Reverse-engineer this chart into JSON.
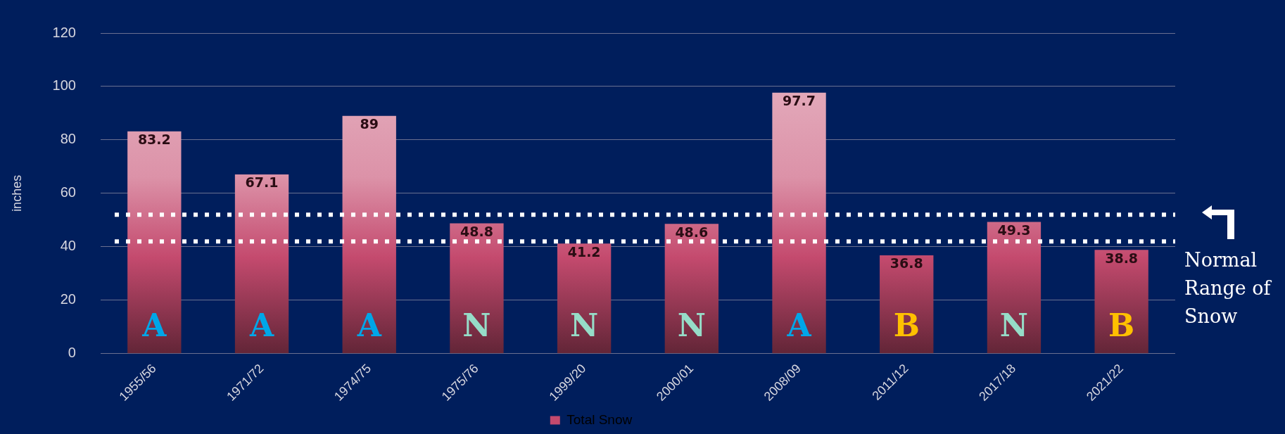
{
  "chart_data": {
    "type": "bar",
    "ylabel": "inches",
    "categories": [
      "1955/56",
      "1971/72",
      "1974/75",
      "1975/76",
      "1999/20",
      "2000/01",
      "2008/09",
      "2011/12",
      "2017/18",
      "2021/22"
    ],
    "series": [
      {
        "name": "Total Snow",
        "color": "#c44a6e",
        "values": [
          83.2,
          67.1,
          89,
          48.8,
          41.2,
          48.6,
          97.7,
          36.8,
          49.3,
          38.8
        ]
      }
    ],
    "data_labels": true,
    "ylim": [
      0,
      120
    ],
    "yticks": [
      0,
      20,
      40,
      60,
      80,
      100,
      120
    ],
    "grid": "y",
    "legend": "bottom",
    "ref_lines": [
      {
        "axis": "y",
        "value": 52,
        "line_style": "dotted",
        "color": "#ffffff"
      },
      {
        "axis": "y",
        "value": 42,
        "line_style": "dotted",
        "color": "#ffffff"
      }
    ],
    "annotations": [
      "A",
      "A",
      "A",
      "N",
      "N",
      "N",
      "A",
      "B",
      "N",
      "B",
      "Normal Range of Snow"
    ]
  }
}
